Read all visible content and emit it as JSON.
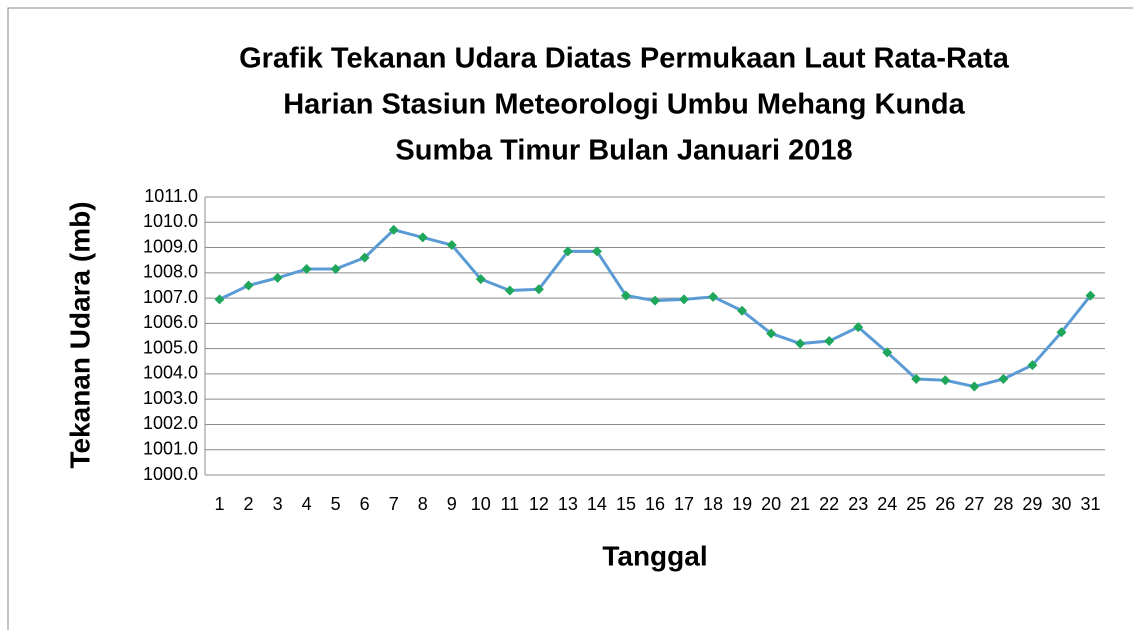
{
  "chart_data": {
    "type": "line",
    "title": [
      "Grafik Tekanan Udara Diatas Permukaan Laut Rata-Rata",
      "Harian Stasiun Meteorologi Umbu Mehang Kunda",
      "Sumba Timur Bulan Januari 2018"
    ],
    "x_label": "Tanggal",
    "y_label": "Tekanan Udara (mb)",
    "categories": [
      "1",
      "2",
      "3",
      "4",
      "5",
      "6",
      "7",
      "8",
      "9",
      "10",
      "11",
      "12",
      "13",
      "14",
      "15",
      "16",
      "17",
      "18",
      "19",
      "20",
      "21",
      "22",
      "23",
      "24",
      "25",
      "26",
      "27",
      "28",
      "29",
      "30",
      "31"
    ],
    "series": [
      {
        "name": "Tekanan Udara",
        "color": "#5b9bd5",
        "marker_color": "#1ea65a",
        "values": [
          1006.95,
          1007.5,
          1007.8,
          1008.15,
          1008.15,
          1008.6,
          1009.7,
          1009.4,
          1009.1,
          1007.75,
          1007.3,
          1007.35,
          1008.85,
          1008.85,
          1007.1,
          1006.9,
          1006.95,
          1007.05,
          1006.5,
          1005.6,
          1005.2,
          1005.3,
          1005.85,
          1004.85,
          1003.8,
          1003.75,
          1003.5,
          1003.8,
          1004.35,
          1005.65,
          1007.1
        ]
      }
    ],
    "ylim": [
      1000,
      1011
    ],
    "yticks": [
      {
        "value": 1000,
        "label": "1000.0"
      },
      {
        "value": 1001,
        "label": "1001.0"
      },
      {
        "value": 1002,
        "label": "1002.0"
      },
      {
        "value": 1003,
        "label": "1003.0"
      },
      {
        "value": 1004,
        "label": "1004.0"
      },
      {
        "value": 1005,
        "label": "1005.0"
      },
      {
        "value": 1006,
        "label": "1006.0"
      },
      {
        "value": 1007,
        "label": "1007.0"
      },
      {
        "value": 1008,
        "label": "1008.0"
      },
      {
        "value": 1009,
        "label": "1009.0"
      },
      {
        "value": 1010,
        "label": "1010.0"
      },
      {
        "value": 1011,
        "label": "1011.0"
      }
    ],
    "grid": true
  }
}
